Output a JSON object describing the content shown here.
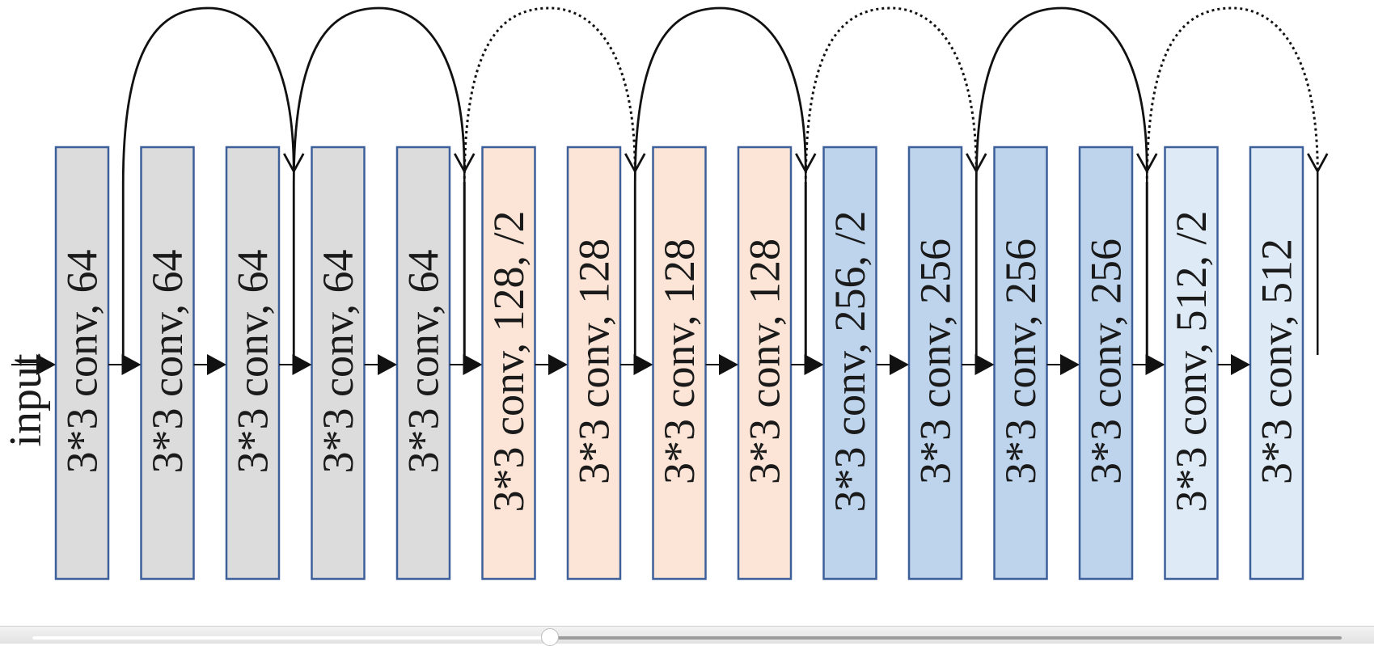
{
  "input_label": "input",
  "blocks": [
    {
      "label": "3*3 conv, 64",
      "group": "gray"
    },
    {
      "label": "3*3 conv, 64",
      "group": "gray"
    },
    {
      "label": "3*3 conv, 64",
      "group": "gray"
    },
    {
      "label": "3*3 conv, 64",
      "group": "gray"
    },
    {
      "label": "3*3 conv, 64",
      "group": "gray"
    },
    {
      "label": "3*3 conv, 128, /2",
      "group": "peach"
    },
    {
      "label": "3*3 conv, 128",
      "group": "peach"
    },
    {
      "label": "3*3 conv, 128",
      "group": "peach"
    },
    {
      "label": "3*3 conv, 128",
      "group": "peach"
    },
    {
      "label": "3*3 conv, 256, /2",
      "group": "blue"
    },
    {
      "label": "3*3 conv, 256",
      "group": "blue"
    },
    {
      "label": "3*3 conv, 256",
      "group": "blue"
    },
    {
      "label": "3*3 conv, 256",
      "group": "blue"
    },
    {
      "label": "3*3 conv, 512, /2",
      "group": "lightblue"
    },
    {
      "label": "3*3 conv, 512",
      "group": "lightblue"
    }
  ],
  "skip_connections": [
    {
      "from_gap": 1,
      "to_gap": 3,
      "style": "solid"
    },
    {
      "from_gap": 3,
      "to_gap": 5,
      "style": "solid"
    },
    {
      "from_gap": 5,
      "to_gap": 7,
      "style": "dotted"
    },
    {
      "from_gap": 7,
      "to_gap": 9,
      "style": "solid"
    },
    {
      "from_gap": 9,
      "to_gap": 11,
      "style": "dotted"
    },
    {
      "from_gap": 11,
      "to_gap": 13,
      "style": "solid"
    },
    {
      "from_gap": 13,
      "to_gap": 15,
      "style": "dotted"
    }
  ],
  "colors": {
    "gray": "#dcdcdc",
    "peach": "#fce5d6",
    "blue": "#bdd4ec",
    "lightblue": "#deeaf6",
    "border": "#3d5f9a",
    "arrow": "#111111"
  }
}
